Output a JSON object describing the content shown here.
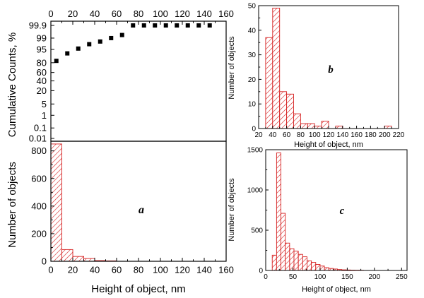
{
  "colors": {
    "bar_edge": "#d62020",
    "bar_hatch": "#d62020",
    "bar_fill": "#ffffff",
    "cum_marker": "#000000",
    "axis": "#000000"
  },
  "chart_data": [
    {
      "id": "a_cumulative",
      "type": "scatter",
      "ylabel": "Cumulative Counts, %",
      "xlim": [
        0,
        160
      ],
      "x_ticks": [
        "0",
        "20",
        "40",
        "60",
        "80",
        "100",
        "120",
        "140",
        "160"
      ],
      "y_scale": "probability",
      "y_ticks": [
        "0.01",
        "0.1",
        "1",
        "5",
        "20",
        "40",
        "60",
        "80",
        "95",
        "99",
        "99.9"
      ],
      "marker": "filled-square",
      "points": [
        {
          "x": 5,
          "y": 83
        },
        {
          "x": 15,
          "y": 92
        },
        {
          "x": 25,
          "y": 95.5
        },
        {
          "x": 35,
          "y": 97.5
        },
        {
          "x": 45,
          "y": 98.3
        },
        {
          "x": 55,
          "y": 99
        },
        {
          "x": 65,
          "y": 99.4
        },
        {
          "x": 75,
          "y": 99.9
        },
        {
          "x": 85,
          "y": 99.9
        },
        {
          "x": 95,
          "y": 99.9
        },
        {
          "x": 105,
          "y": 99.9
        },
        {
          "x": 115,
          "y": 99.9
        },
        {
          "x": 125,
          "y": 99.9
        },
        {
          "x": 135,
          "y": 99.9
        },
        {
          "x": 145,
          "y": 99.9
        }
      ]
    },
    {
      "id": "a_histogram",
      "type": "bar",
      "panel_label": "a",
      "xlabel": "Height of object, nm",
      "ylabel": "Number of objects",
      "xlim": [
        0,
        160
      ],
      "ylim": [
        0,
        870
      ],
      "x_ticks": [
        "0",
        "20",
        "40",
        "60",
        "80",
        "100",
        "120",
        "140",
        "160"
      ],
      "y_ticks": [
        "0",
        "200",
        "400",
        "600",
        "800"
      ],
      "bin_width": 10,
      "bins": [
        {
          "start": 0,
          "value": 850
        },
        {
          "start": 10,
          "value": 85
        },
        {
          "start": 20,
          "value": 35
        },
        {
          "start": 30,
          "value": 20
        },
        {
          "start": 40,
          "value": 5
        },
        {
          "start": 50,
          "value": 3
        }
      ]
    },
    {
      "id": "b",
      "type": "bar",
      "panel_label": "b",
      "xlabel": "Height of object, nm",
      "ylabel": "Number of objects",
      "xlim": [
        20,
        220
      ],
      "ylim": [
        0,
        50
      ],
      "x_ticks": [
        "20",
        "40",
        "60",
        "80",
        "100",
        "120",
        "140",
        "160",
        "180",
        "200",
        "220"
      ],
      "y_ticks": [
        "0",
        "10",
        "20",
        "30",
        "40",
        "50"
      ],
      "bin_width": 10,
      "bins": [
        {
          "start": 30,
          "value": 37
        },
        {
          "start": 40,
          "value": 49
        },
        {
          "start": 50,
          "value": 15
        },
        {
          "start": 60,
          "value": 14
        },
        {
          "start": 70,
          "value": 6
        },
        {
          "start": 80,
          "value": 2
        },
        {
          "start": 90,
          "value": 2
        },
        {
          "start": 100,
          "value": 1
        },
        {
          "start": 110,
          "value": 3
        },
        {
          "start": 130,
          "value": 1
        },
        {
          "start": 200,
          "value": 1
        }
      ]
    },
    {
      "id": "c",
      "type": "bar",
      "panel_label": "c",
      "xlabel": "Height of object, nm",
      "ylabel": "Number of objects",
      "xlim": [
        0,
        260
      ],
      "ylim": [
        0,
        1500
      ],
      "x_ticks": [
        "0",
        "50",
        "100",
        "150",
        "200",
        "250"
      ],
      "y_ticks": [
        "0",
        "500",
        "1000",
        "1500"
      ],
      "bin_width": 8,
      "bins": [
        {
          "start": 12,
          "value": 190
        },
        {
          "start": 20,
          "value": 1460
        },
        {
          "start": 28,
          "value": 710
        },
        {
          "start": 36,
          "value": 340
        },
        {
          "start": 44,
          "value": 270
        },
        {
          "start": 52,
          "value": 240
        },
        {
          "start": 60,
          "value": 200
        },
        {
          "start": 68,
          "value": 170
        },
        {
          "start": 76,
          "value": 120
        },
        {
          "start": 84,
          "value": 100
        },
        {
          "start": 92,
          "value": 75
        },
        {
          "start": 100,
          "value": 55
        },
        {
          "start": 108,
          "value": 35
        },
        {
          "start": 116,
          "value": 25
        },
        {
          "start": 124,
          "value": 18
        },
        {
          "start": 132,
          "value": 12
        },
        {
          "start": 140,
          "value": 8
        },
        {
          "start": 148,
          "value": 6
        },
        {
          "start": 156,
          "value": 4
        },
        {
          "start": 164,
          "value": 3
        },
        {
          "start": 172,
          "value": 2
        }
      ]
    }
  ]
}
